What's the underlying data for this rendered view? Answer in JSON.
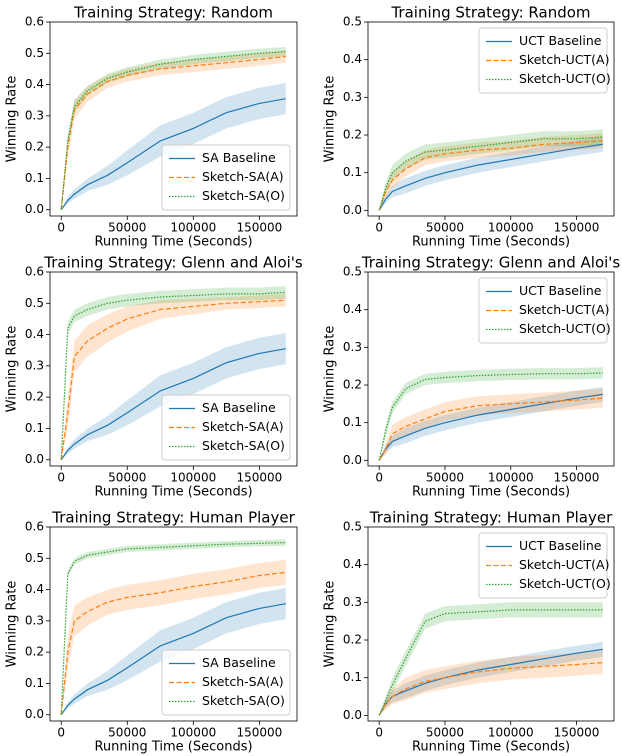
{
  "chart_data": [
    {
      "type": "line",
      "title": "Training Strategy: Random",
      "xlabel": "Running Time (Seconds)",
      "ylabel": "Winning Rate",
      "x": [
        0,
        5000,
        10000,
        20000,
        35000,
        50000,
        75000,
        100000,
        125000,
        150000,
        170000
      ],
      "xlim": [
        -8500,
        178500
      ],
      "ylim": [
        -0.02,
        0.6
      ],
      "xticks": [
        0,
        50000,
        100000,
        150000
      ],
      "yticks": [
        {
          "value": 0,
          "label": "0.0"
        },
        {
          "value": 0.1,
          "label": "0.1"
        },
        {
          "value": 0.2,
          "label": "0.2"
        },
        {
          "value": 0.3,
          "label": "0.3"
        },
        {
          "value": 0.4,
          "label": "0.4"
        },
        {
          "value": 0.5,
          "label": "0.5"
        },
        {
          "value": 0.6,
          "label": "0.6"
        }
      ],
      "legend": "lower right",
      "series": [
        {
          "name": "SA Baseline",
          "color": "#1f77b4",
          "linestyle": "solid",
          "values": [
            0,
            0.03,
            0.05,
            0.08,
            0.11,
            0.15,
            0.22,
            0.26,
            0.31,
            0.34,
            0.355
          ],
          "error": [
            0,
            0.01,
            0.015,
            0.02,
            0.03,
            0.04,
            0.05,
            0.05,
            0.05,
            0.05,
            0.05
          ]
        },
        {
          "name": "Sketch-SA(A)",
          "color": "#ff7f0e",
          "linestyle": "dashed",
          "values": [
            0,
            0.2,
            0.32,
            0.37,
            0.41,
            0.43,
            0.45,
            0.46,
            0.47,
            0.48,
            0.49
          ],
          "error": [
            0,
            0.03,
            0.03,
            0.025,
            0.02,
            0.02,
            0.02,
            0.02,
            0.02,
            0.02,
            0.02
          ]
        },
        {
          "name": "Sketch-SA(O)",
          "color": "#2ca02c",
          "linestyle": "dotted",
          "values": [
            0,
            0.22,
            0.33,
            0.38,
            0.42,
            0.44,
            0.465,
            0.48,
            0.49,
            0.5,
            0.505
          ],
          "error": [
            0,
            0.02,
            0.02,
            0.015,
            0.015,
            0.015,
            0.015,
            0.015,
            0.015,
            0.015,
            0.015
          ]
        }
      ]
    },
    {
      "type": "line",
      "title": "Training Strategy: Random",
      "xlabel": "Running Time (Seconds)",
      "ylabel": "Winning Rate",
      "x": [
        0,
        5000,
        10000,
        20000,
        35000,
        50000,
        75000,
        100000,
        125000,
        150000,
        170000
      ],
      "xlim": [
        -8500,
        178500
      ],
      "ylim": [
        -0.015,
        0.5
      ],
      "xticks": [
        0,
        50000,
        100000,
        150000
      ],
      "yticks": [
        {
          "value": 0,
          "label": "0.0"
        },
        {
          "value": 0.1,
          "label": "0.1"
        },
        {
          "value": 0.2,
          "label": "0.2"
        },
        {
          "value": 0.3,
          "label": "0.3"
        },
        {
          "value": 0.4,
          "label": "0.4"
        },
        {
          "value": 0.5,
          "label": "0.5"
        }
      ],
      "legend": "upper right",
      "series": [
        {
          "name": "UCT Baseline",
          "color": "#1f77b4",
          "linestyle": "solid",
          "values": [
            0,
            0.03,
            0.05,
            0.065,
            0.085,
            0.1,
            0.12,
            0.135,
            0.15,
            0.165,
            0.175
          ],
          "error": [
            0,
            0.01,
            0.015,
            0.02,
            0.02,
            0.02,
            0.02,
            0.02,
            0.02,
            0.02,
            0.02
          ]
        },
        {
          "name": "Sketch-UCT(A)",
          "color": "#ff7f0e",
          "linestyle": "dashed",
          "values": [
            0,
            0.05,
            0.08,
            0.11,
            0.14,
            0.15,
            0.16,
            0.165,
            0.175,
            0.18,
            0.185
          ],
          "error": [
            0,
            0.015,
            0.02,
            0.02,
            0.02,
            0.02,
            0.02,
            0.02,
            0.02,
            0.02,
            0.02
          ]
        },
        {
          "name": "Sketch-UCT(O)",
          "color": "#2ca02c",
          "linestyle": "dotted",
          "values": [
            0,
            0.06,
            0.1,
            0.13,
            0.155,
            0.16,
            0.17,
            0.18,
            0.19,
            0.19,
            0.195
          ],
          "error": [
            0,
            0.015,
            0.02,
            0.02,
            0.02,
            0.02,
            0.02,
            0.02,
            0.02,
            0.02,
            0.02
          ]
        }
      ]
    },
    {
      "type": "line",
      "title": "Training Strategy: Glenn and Aloi's",
      "xlabel": "Running Time (Seconds)",
      "ylabel": "Winning Rate",
      "x": [
        0,
        5000,
        10000,
        20000,
        35000,
        50000,
        75000,
        100000,
        125000,
        150000,
        170000
      ],
      "xlim": [
        -8500,
        178500
      ],
      "ylim": [
        -0.02,
        0.6
      ],
      "xticks": [
        0,
        50000,
        100000,
        150000
      ],
      "yticks": [
        {
          "value": 0,
          "label": "0.0"
        },
        {
          "value": 0.1,
          "label": "0.1"
        },
        {
          "value": 0.2,
          "label": "0.2"
        },
        {
          "value": 0.3,
          "label": "0.3"
        },
        {
          "value": 0.4,
          "label": "0.4"
        },
        {
          "value": 0.5,
          "label": "0.5"
        },
        {
          "value": 0.6,
          "label": "0.6"
        }
      ],
      "legend": "lower right",
      "series": [
        {
          "name": "SA Baseline",
          "color": "#1f77b4",
          "linestyle": "solid",
          "values": [
            0,
            0.03,
            0.05,
            0.08,
            0.11,
            0.15,
            0.22,
            0.26,
            0.31,
            0.34,
            0.355
          ],
          "error": [
            0,
            0.01,
            0.015,
            0.02,
            0.03,
            0.04,
            0.05,
            0.05,
            0.05,
            0.05,
            0.05
          ]
        },
        {
          "name": "Sketch-SA(A)",
          "color": "#ff7f0e",
          "linestyle": "dashed",
          "values": [
            0,
            0.15,
            0.33,
            0.38,
            0.42,
            0.45,
            0.48,
            0.49,
            0.5,
            0.505,
            0.51
          ],
          "error": [
            0,
            0.05,
            0.05,
            0.05,
            0.045,
            0.04,
            0.03,
            0.025,
            0.02,
            0.02,
            0.02
          ]
        },
        {
          "name": "Sketch-SA(O)",
          "color": "#2ca02c",
          "linestyle": "dotted",
          "values": [
            0,
            0.42,
            0.46,
            0.48,
            0.5,
            0.51,
            0.52,
            0.525,
            0.53,
            0.53,
            0.535
          ],
          "error": [
            0,
            0.02,
            0.02,
            0.02,
            0.02,
            0.02,
            0.02,
            0.02,
            0.02,
            0.02,
            0.02
          ]
        }
      ]
    },
    {
      "type": "line",
      "title": "Training Strategy: Glenn and Aloi's",
      "xlabel": "Running Time (Seconds)",
      "ylabel": "Winning Rate",
      "x": [
        0,
        5000,
        10000,
        20000,
        35000,
        50000,
        75000,
        100000,
        125000,
        150000,
        170000
      ],
      "xlim": [
        -8500,
        178500
      ],
      "ylim": [
        -0.015,
        0.5
      ],
      "xticks": [
        0,
        50000,
        100000,
        150000
      ],
      "yticks": [
        {
          "value": 0,
          "label": "0.0"
        },
        {
          "value": 0.1,
          "label": "0.1"
        },
        {
          "value": 0.2,
          "label": "0.2"
        },
        {
          "value": 0.3,
          "label": "0.3"
        },
        {
          "value": 0.4,
          "label": "0.4"
        },
        {
          "value": 0.5,
          "label": "0.5"
        }
      ],
      "legend": "upper right",
      "series": [
        {
          "name": "UCT Baseline",
          "color": "#1f77b4",
          "linestyle": "solid",
          "values": [
            0,
            0.03,
            0.05,
            0.065,
            0.085,
            0.1,
            0.12,
            0.135,
            0.15,
            0.165,
            0.175
          ],
          "error": [
            0,
            0.01,
            0.015,
            0.02,
            0.02,
            0.02,
            0.02,
            0.02,
            0.02,
            0.02,
            0.02
          ]
        },
        {
          "name": "Sketch-UCT(A)",
          "color": "#ff7f0e",
          "linestyle": "dashed",
          "values": [
            0,
            0.03,
            0.07,
            0.09,
            0.11,
            0.13,
            0.145,
            0.15,
            0.155,
            0.16,
            0.165
          ],
          "error": [
            0,
            0.015,
            0.025,
            0.025,
            0.025,
            0.025,
            0.025,
            0.025,
            0.025,
            0.025,
            0.025
          ]
        },
        {
          "name": "Sketch-UCT(O)",
          "color": "#2ca02c",
          "linestyle": "dotted",
          "values": [
            0,
            0.08,
            0.14,
            0.19,
            0.215,
            0.22,
            0.225,
            0.228,
            0.23,
            0.23,
            0.232
          ],
          "error": [
            0,
            0.015,
            0.015,
            0.015,
            0.015,
            0.015,
            0.015,
            0.015,
            0.015,
            0.015,
            0.015
          ]
        }
      ]
    },
    {
      "type": "line",
      "title": "Training Strategy: Human Player",
      "xlabel": "Running Time (Seconds)",
      "ylabel": "Winning Rate",
      "x": [
        0,
        5000,
        10000,
        20000,
        35000,
        50000,
        75000,
        100000,
        125000,
        150000,
        170000
      ],
      "xlim": [
        -8500,
        178500
      ],
      "ylim": [
        -0.02,
        0.6
      ],
      "xticks": [
        0,
        50000,
        100000,
        150000
      ],
      "yticks": [
        {
          "value": 0,
          "label": "0.0"
        },
        {
          "value": 0.1,
          "label": "0.1"
        },
        {
          "value": 0.2,
          "label": "0.2"
        },
        {
          "value": 0.3,
          "label": "0.3"
        },
        {
          "value": 0.4,
          "label": "0.4"
        },
        {
          "value": 0.5,
          "label": "0.5"
        },
        {
          "value": 0.6,
          "label": "0.6"
        }
      ],
      "legend": "lower right",
      "series": [
        {
          "name": "SA Baseline",
          "color": "#1f77b4",
          "linestyle": "solid",
          "values": [
            0,
            0.03,
            0.05,
            0.08,
            0.11,
            0.15,
            0.22,
            0.26,
            0.31,
            0.34,
            0.355
          ],
          "error": [
            0,
            0.01,
            0.015,
            0.02,
            0.03,
            0.04,
            0.05,
            0.05,
            0.05,
            0.05,
            0.05
          ]
        },
        {
          "name": "Sketch-SA(A)",
          "color": "#ff7f0e",
          "linestyle": "dashed",
          "values": [
            0,
            0.2,
            0.3,
            0.33,
            0.36,
            0.375,
            0.39,
            0.41,
            0.425,
            0.445,
            0.455
          ],
          "error": [
            0,
            0.05,
            0.05,
            0.045,
            0.04,
            0.04,
            0.04,
            0.04,
            0.04,
            0.04,
            0.04
          ]
        },
        {
          "name": "Sketch-SA(O)",
          "color": "#2ca02c",
          "linestyle": "dotted",
          "values": [
            0,
            0.45,
            0.49,
            0.51,
            0.52,
            0.53,
            0.535,
            0.54,
            0.545,
            0.548,
            0.55
          ],
          "error": [
            0,
            0.01,
            0.01,
            0.01,
            0.01,
            0.01,
            0.01,
            0.01,
            0.01,
            0.01,
            0.01
          ]
        }
      ]
    },
    {
      "type": "line",
      "title": "Training Strategy: Human Player",
      "xlabel": "Running Time (Seconds)",
      "ylabel": "Winning Rate",
      "x": [
        0,
        5000,
        10000,
        20000,
        35000,
        50000,
        75000,
        100000,
        125000,
        150000,
        170000
      ],
      "xlim": [
        -8500,
        178500
      ],
      "ylim": [
        -0.015,
        0.5
      ],
      "xticks": [
        0,
        50000,
        100000,
        150000
      ],
      "yticks": [
        {
          "value": 0,
          "label": "0.0"
        },
        {
          "value": 0.1,
          "label": "0.1"
        },
        {
          "value": 0.2,
          "label": "0.2"
        },
        {
          "value": 0.3,
          "label": "0.3"
        },
        {
          "value": 0.4,
          "label": "0.4"
        },
        {
          "value": 0.5,
          "label": "0.5"
        }
      ],
      "legend": "upper right",
      "series": [
        {
          "name": "UCT Baseline",
          "color": "#1f77b4",
          "linestyle": "solid",
          "values": [
            0,
            0.03,
            0.05,
            0.065,
            0.085,
            0.1,
            0.12,
            0.135,
            0.15,
            0.165,
            0.175
          ],
          "error": [
            0,
            0.01,
            0.015,
            0.02,
            0.02,
            0.02,
            0.02,
            0.02,
            0.02,
            0.02,
            0.02
          ]
        },
        {
          "name": "Sketch-UCT(A)",
          "color": "#ff7f0e",
          "linestyle": "dashed",
          "values": [
            0,
            0.03,
            0.05,
            0.07,
            0.09,
            0.1,
            0.115,
            0.125,
            0.13,
            0.135,
            0.14
          ],
          "error": [
            0,
            0.015,
            0.02,
            0.03,
            0.03,
            0.03,
            0.03,
            0.03,
            0.03,
            0.03,
            0.03
          ]
        },
        {
          "name": "Sketch-UCT(O)",
          "color": "#2ca02c",
          "linestyle": "dotted",
          "values": [
            0,
            0.04,
            0.08,
            0.15,
            0.25,
            0.27,
            0.275,
            0.28,
            0.28,
            0.28,
            0.28
          ],
          "error": [
            0,
            0.01,
            0.02,
            0.02,
            0.02,
            0.02,
            0.02,
            0.02,
            0.02,
            0.02,
            0.02
          ]
        }
      ]
    }
  ]
}
